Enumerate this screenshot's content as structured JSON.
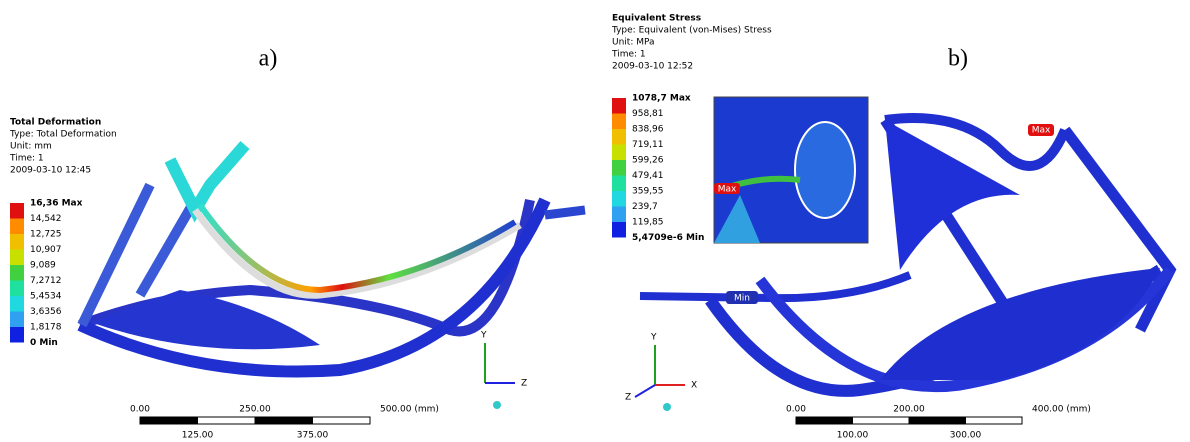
{
  "panels": [
    {
      "label": "a)",
      "legend": {
        "title": "Total Deformation",
        "lines": [
          "Type: Total Deformation",
          "Unit: mm",
          "Time: 1",
          "2009-03-10 12:45"
        ],
        "levels": [
          "16,36 Max",
          "14,542",
          "12,725",
          "10,907",
          "9,089",
          "7,2712",
          "5,4534",
          "3,6356",
          "1,8178",
          "0 Min"
        ]
      },
      "scale": {
        "top": [
          "0.00",
          "250.00",
          "500.00 (mm)"
        ],
        "bottom": [
          "125.00",
          "375.00"
        ]
      },
      "axes": [
        "Y",
        "Z"
      ]
    },
    {
      "label": "b)",
      "legend": {
        "title": "Equivalent Stress",
        "lines": [
          "Type: Equivalent (von-Mises) Stress",
          "Unit: MPa",
          "Time: 1",
          "2009-03-10 12:52"
        ],
        "levels": [
          "1078,7 Max",
          "958,81",
          "838,96",
          "719,11",
          "599,26",
          "479,41",
          "359,55",
          "239,7",
          "119,85",
          "5,4709e-6 Min"
        ]
      },
      "scale": {
        "top": [
          "0.00",
          "200.00",
          "400.00 (mm)"
        ],
        "bottom": [
          "100.00",
          "300.00"
        ]
      },
      "axes": [
        "Y",
        "X",
        "Z"
      ],
      "markers": [
        "Max",
        "Min",
        "Max"
      ]
    }
  ]
}
